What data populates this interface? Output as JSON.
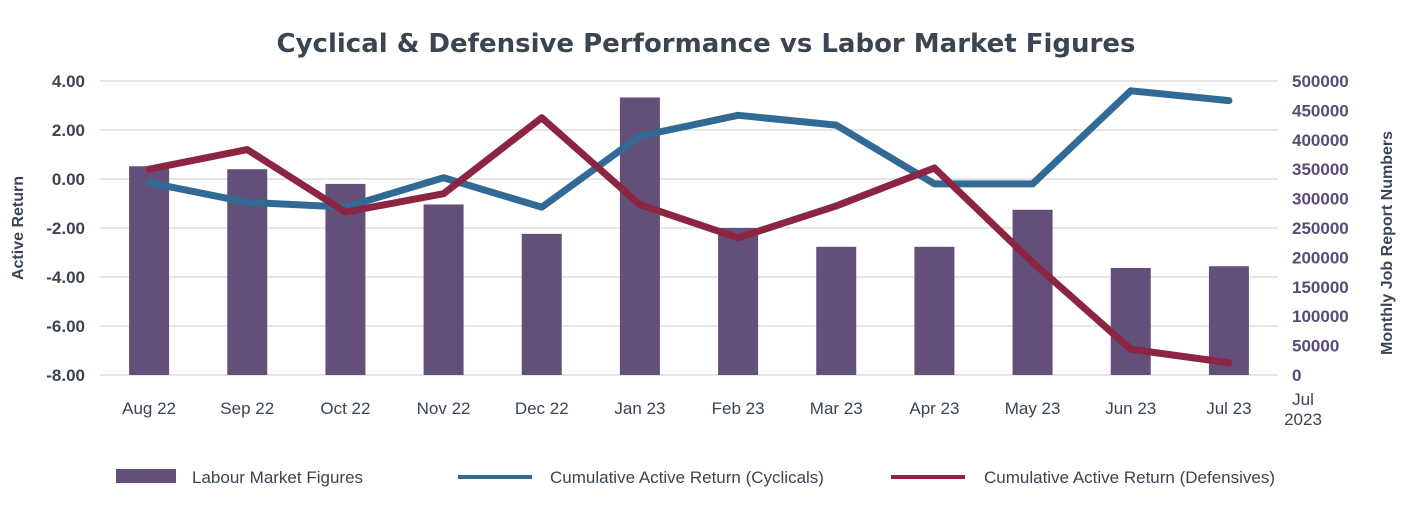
{
  "chart_data": {
    "type": "bar+line",
    "title": "Cyclical & Defensive Performance vs Labor Market Figures",
    "categories": [
      "Aug 22",
      "Sep 22",
      "Oct 22",
      "Nov 22",
      "Dec 22",
      "Jan 23",
      "Feb 23",
      "Mar 23",
      "Apr 23",
      "May 23",
      "Jun 23",
      "Jul 23"
    ],
    "extra_category_label": [
      "Jul",
      "2023"
    ],
    "ylabel_left": "Active Return",
    "ylabel_right": "Monthly Job Report Numbers",
    "ylim_left": [
      -8,
      4
    ],
    "ylim_right": [
      0,
      500000
    ],
    "yticks_left": [
      "4.00",
      "2.00",
      "0.00",
      "-2.00",
      "-4.00",
      "-6.00",
      "-8.00"
    ],
    "yticks_right": [
      "500000",
      "450000",
      "400000",
      "350000",
      "300000",
      "250000",
      "200000",
      "150000",
      "100000",
      "50000",
      "0"
    ],
    "bars": {
      "name": "Labour Market Figures",
      "axis": "right",
      "color": "#644f7a",
      "values": [
        355000,
        350000,
        325000,
        290000,
        240000,
        472000,
        250000,
        218000,
        218000,
        281000,
        182000,
        185000
      ]
    },
    "series": [
      {
        "name": "Cumulative Active Return (Cyclicals)",
        "axis": "left",
        "color": "#326a96",
        "values": [
          -0.15,
          -0.95,
          -1.15,
          0.05,
          -1.15,
          1.75,
          2.6,
          2.2,
          -0.2,
          -0.2,
          3.6,
          3.2
        ]
      },
      {
        "name": "Cumulative Active Return (Defensives)",
        "axis": "left",
        "color": "#8b2542",
        "values": [
          0.4,
          1.2,
          -1.35,
          -0.6,
          2.5,
          -1.05,
          -2.4,
          -1.1,
          0.45,
          -3.4,
          -6.95,
          -7.5
        ]
      }
    ],
    "legend_position": "bottom",
    "grid": true
  }
}
